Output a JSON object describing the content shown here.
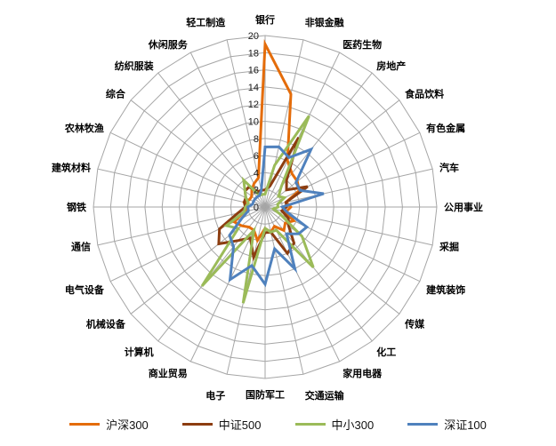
{
  "chart_data": {
    "type": "radar",
    "title": "",
    "rmin": 0,
    "rmax": 20,
    "tick_step": 2,
    "tick_labels": [
      "0",
      "2",
      "4",
      "6",
      "8",
      "10",
      "12",
      "14",
      "16",
      "18",
      "20"
    ],
    "grid": {
      "color": "#A6A6A6",
      "rings": 10,
      "show_spokes": true
    },
    "legend_position": "bottom",
    "categories": [
      "银行",
      "非银金融",
      "医药生物",
      "房地产",
      "食品饮料",
      "有色金属",
      "汽车",
      "公用事业",
      "采掘",
      "建筑装饰",
      "传媒",
      "化工",
      "家用电器",
      "交通运输",
      "国防军工",
      "电子",
      "商业贸易",
      "计算机",
      "机械设备",
      "电气设备",
      "通信",
      "钢铁",
      "建筑材料",
      "农林牧渔",
      "综合",
      "纺织服装",
      "休闲服务",
      "轻工制造"
    ],
    "series": [
      {
        "name": "沪深300",
        "color": "#E46C0A",
        "values": [
          19,
          13.5,
          6,
          5,
          4.8,
          4.4,
          2.5,
          3,
          2.5,
          3.7,
          3,
          3.5,
          2.5,
          3,
          2.5,
          4,
          3,
          3,
          3.5,
          4,
          2.5,
          2,
          2.5,
          2,
          2,
          2.5,
          3,
          3.5
        ]
      },
      {
        "name": "中证500",
        "color": "#8C3D10",
        "values": [
          2,
          2.5,
          9,
          4,
          3.2,
          5.5,
          2.5,
          2.5,
          2,
          3,
          3.5,
          5.4,
          6,
          3,
          3,
          6,
          4,
          5,
          6.9,
          5.9,
          3.3,
          2.3,
          2.5,
          2.5,
          3,
          3,
          2,
          2
        ]
      },
      {
        "name": "中小300",
        "color": "#9BBB59",
        "values": [
          1.5,
          5,
          11.8,
          3,
          2,
          2.5,
          1.5,
          1.5,
          1,
          2,
          5.5,
          9,
          3,
          3,
          2.5,
          11.5,
          3,
          11.8,
          4,
          5,
          2.5,
          2.3,
          2,
          2.5,
          3,
          4,
          1.5,
          1.5
        ]
      },
      {
        "name": "深证100",
        "color": "#4F81BD",
        "values": [
          7,
          7.2,
          6.4,
          8.6,
          4.6,
          4.5,
          7,
          2,
          2.6,
          5.4,
          5,
          4,
          8,
          5,
          9,
          7,
          9.4,
          5.9,
          5.3,
          3,
          2,
          2,
          1.5,
          1.5,
          1.5,
          1.5,
          1.5,
          2
        ]
      }
    ]
  }
}
